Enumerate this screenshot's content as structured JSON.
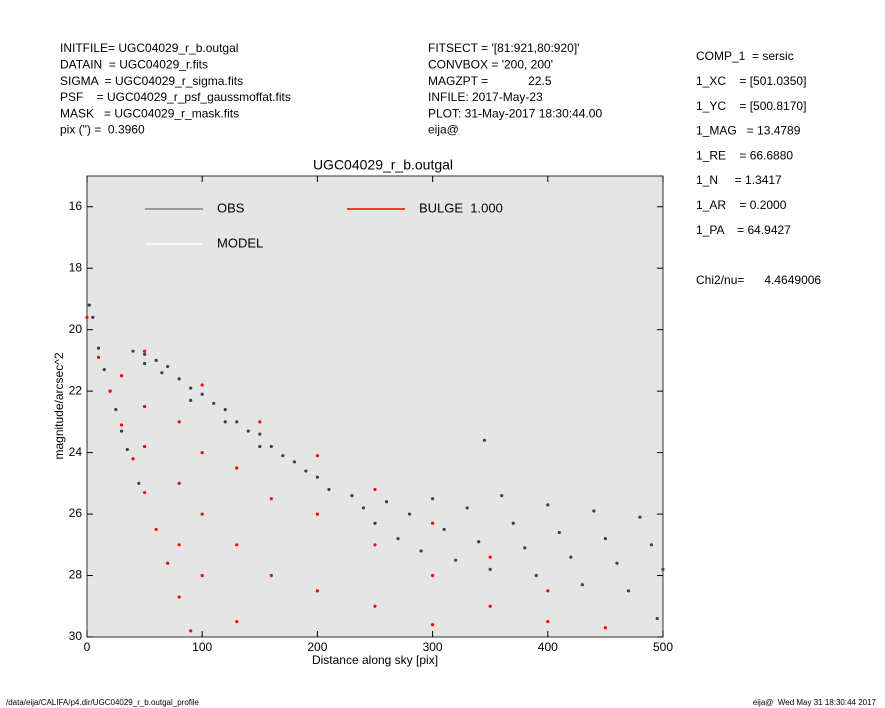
{
  "header": {
    "left": [
      "INITFILE= UGC04029_r_b.outgal",
      "DATAIN  = UGC04029_r.fits",
      "SIGMA  = UGC04029_r_sigma.fits",
      "PSF    = UGC04029_r_psf_gaussmoffat.fits",
      "MASK   = UGC04029_r_mask.fits",
      "pix (\") =  0.3960"
    ],
    "middle": [
      "FITSECT = '[81:921,80:920]'",
      "CONVBOX = '200, 200'",
      "MAGZPT =            22.5",
      "INFILE: 2017-May-23",
      "PLOT: 31-May-2017 18:30:44.00",
      "eija@"
    ],
    "right": [
      "COMP_1  = sersic",
      "1_XC    = [501.0350]",
      "1_YC    = [500.8170]",
      "1_MAG   = 13.4789",
      "1_RE    = 66.6880",
      "1_N     = 1.3417",
      "1_AR    = 0.2000",
      "1_PA    = 64.9427"
    ],
    "chi2": "Chi2/nu=      4.4649006"
  },
  "footer": {
    "left": "/data/eija/CALIFA/p4.dir/UGC04029_r_b.outgal_profile",
    "right": "eija@  Wed May 31 18:30:44 2017"
  },
  "chart_data": {
    "type": "scatter",
    "title": "UGC04029_r_b.outgal",
    "xlabel": "Distance along sky [pix]",
    "ylabel": "magnitude/arcsec^2",
    "xlim": [
      0,
      500
    ],
    "xticks": [
      0,
      100,
      200,
      300,
      400,
      500
    ],
    "ylim": [
      30,
      15
    ],
    "yticks": [
      16,
      18,
      20,
      22,
      24,
      26,
      28,
      30
    ],
    "background": "#e5e5e5",
    "series": [
      {
        "name": "OBS",
        "color": "#808080",
        "point_color": "#404040",
        "x": [
          2,
          5,
          10,
          15,
          20,
          25,
          30,
          35,
          45,
          40,
          50,
          60,
          70,
          80,
          90,
          100,
          110,
          120,
          130,
          140,
          150,
          160,
          170,
          180,
          190,
          200,
          210,
          230,
          50,
          65,
          90,
          120,
          150,
          240,
          250,
          260,
          270,
          280,
          290,
          300,
          310,
          320,
          330,
          340,
          350,
          360,
          370,
          380,
          390,
          400,
          410,
          420,
          430,
          440,
          450,
          460,
          470,
          480,
          490,
          500,
          345,
          495
        ],
        "y": [
          19.2,
          19.6,
          20.6,
          21.3,
          22.0,
          22.6,
          23.3,
          23.9,
          25.0,
          20.7,
          20.8,
          21.0,
          21.2,
          21.6,
          21.9,
          22.1,
          22.4,
          22.6,
          23.0,
          23.3,
          23.4,
          23.8,
          24.1,
          24.3,
          24.6,
          24.8,
          25.2,
          25.4,
          21.1,
          21.4,
          22.3,
          23.0,
          23.8,
          25.8,
          26.3,
          25.6,
          26.8,
          26.0,
          27.2,
          25.5,
          26.5,
          27.5,
          25.8,
          26.9,
          27.8,
          25.4,
          26.3,
          27.1,
          28.0,
          25.7,
          26.6,
          27.4,
          28.3,
          25.9,
          26.8,
          27.6,
          28.5,
          26.1,
          27.0,
          27.8,
          23.6,
          29.4
        ]
      },
      {
        "name": "MODEL",
        "color": "#ffffff"
      },
      {
        "name": "BULGE  1.000",
        "color": "#ff0000",
        "point_color": "#ff0000",
        "x": [
          0,
          50,
          100,
          150,
          200,
          250,
          300,
          350,
          400,
          450,
          10,
          20,
          30,
          40,
          50,
          60,
          70,
          80,
          90,
          30,
          50,
          50,
          80,
          80,
          80,
          100,
          100,
          100,
          130,
          130,
          130,
          160,
          160,
          200,
          200,
          250,
          250,
          300,
          300,
          350,
          400
        ],
        "y": [
          19.6,
          20.7,
          21.8,
          23.0,
          24.1,
          25.2,
          26.3,
          27.4,
          28.5,
          29.7,
          20.9,
          22.0,
          23.1,
          24.2,
          25.3,
          26.5,
          27.6,
          28.7,
          29.8,
          21.5,
          22.5,
          23.8,
          23.0,
          25.0,
          27.0,
          24.0,
          26.0,
          28.0,
          24.5,
          27.0,
          29.5,
          25.5,
          28.0,
          26.0,
          28.5,
          27.0,
          29.0,
          28.0,
          29.6,
          29.0,
          29.5
        ]
      }
    ]
  }
}
